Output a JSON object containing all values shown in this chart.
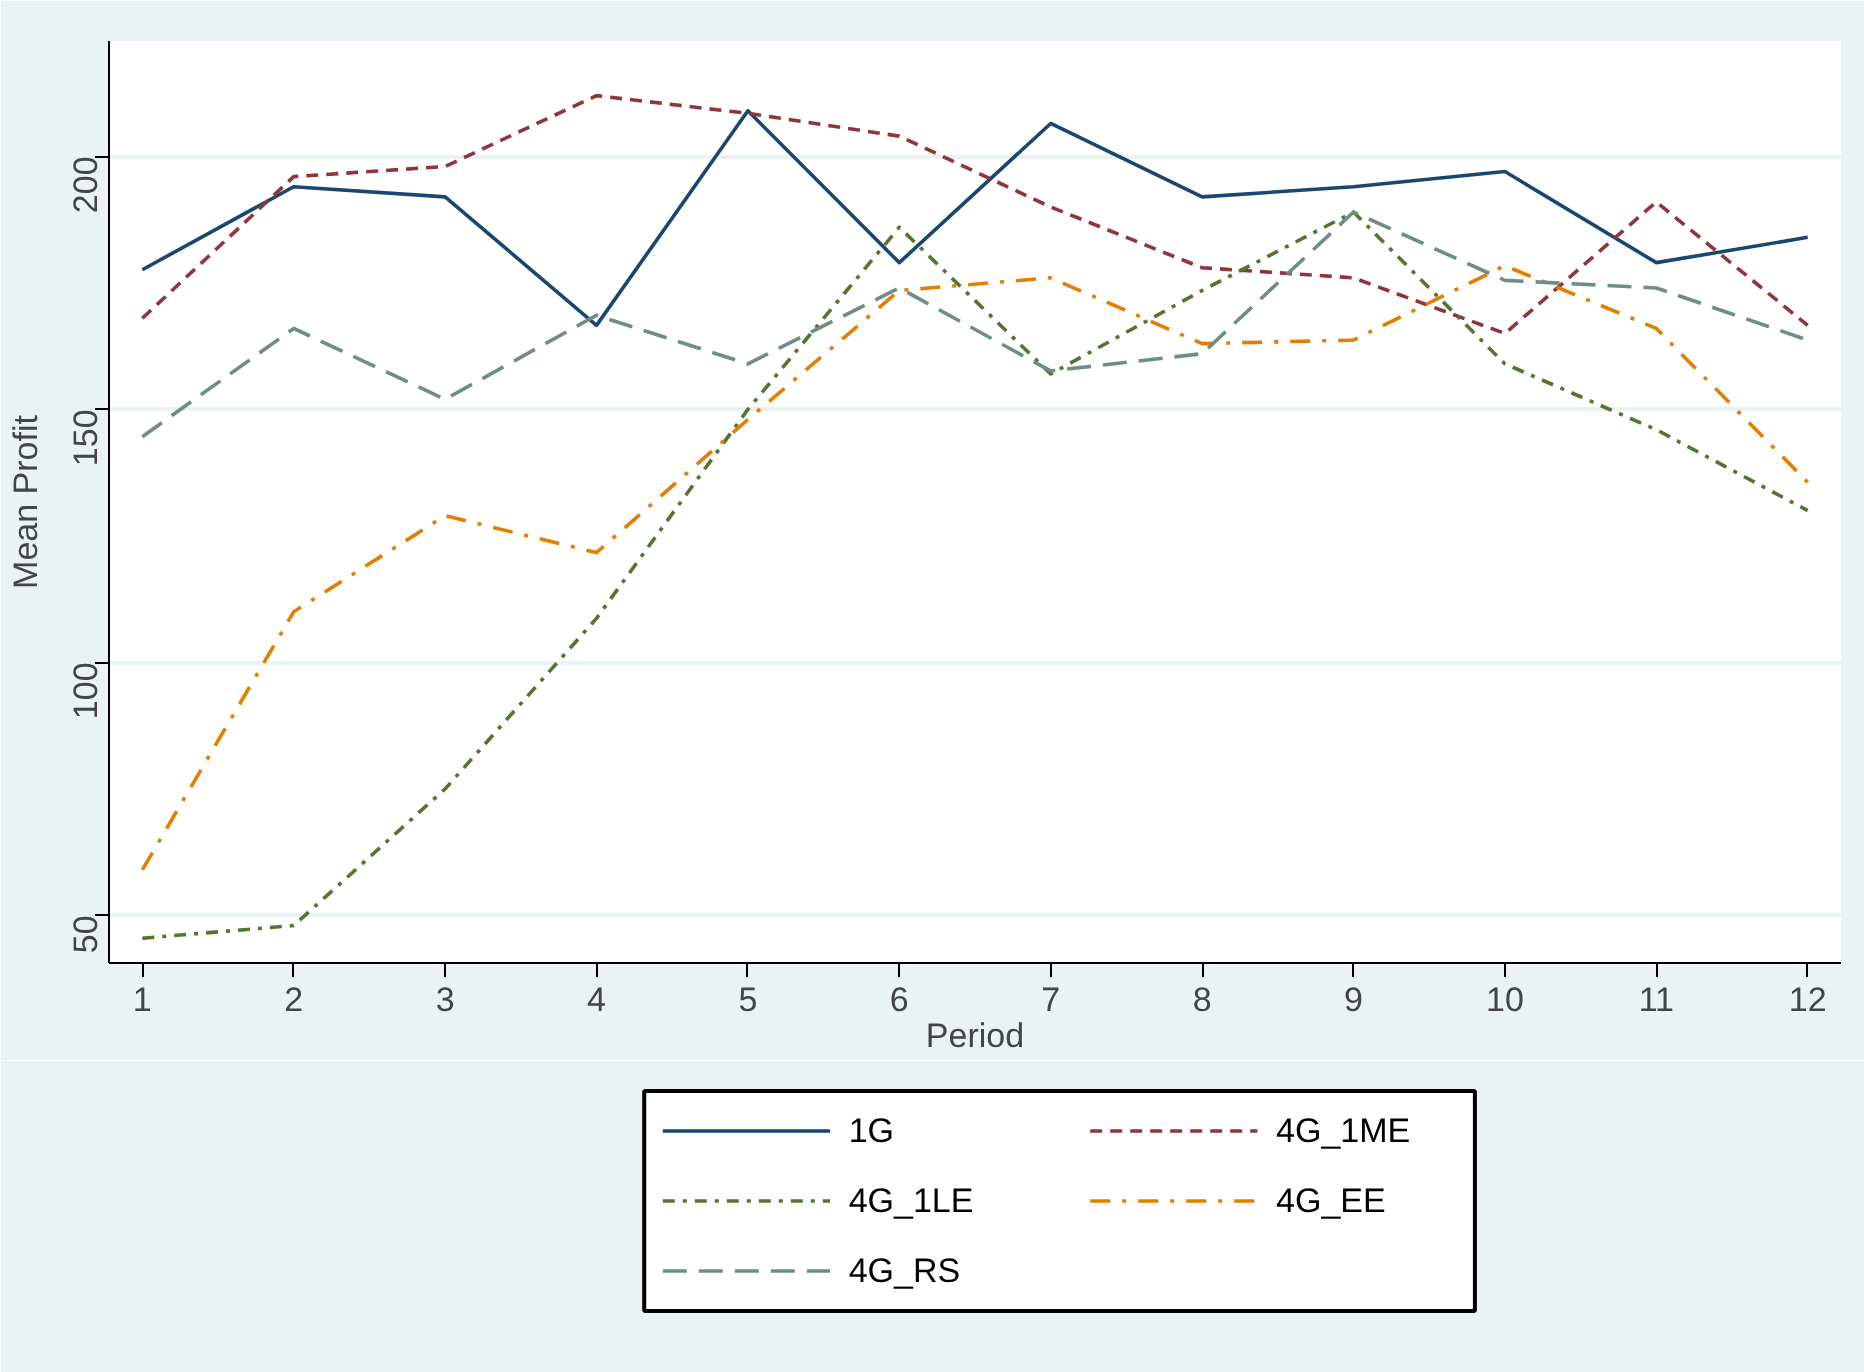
{
  "chart_data": {
    "type": "line",
    "xlabel": "Period",
    "ylabel": "Mean Profit",
    "x": [
      1,
      2,
      3,
      4,
      5,
      6,
      7,
      8,
      9,
      10,
      11,
      12
    ],
    "xlim": [
      0.78,
      12.22
    ],
    "ylim": [
      40.6,
      222.8
    ],
    "xticks": [
      1,
      2,
      3,
      4,
      5,
      6,
      7,
      8,
      9,
      10,
      11,
      12
    ],
    "yticks": [
      50,
      100,
      150,
      200
    ],
    "grid": "y",
    "legend": "bottom",
    "marker": "none",
    "series": [
      {
        "name": "1G",
        "color": "#1a476f",
        "line_style": "solid",
        "values": [
          177.6,
          194,
          192,
          166.6,
          209,
          179,
          206.5,
          192,
          194,
          197,
          179,
          184
        ]
      },
      {
        "name": "4G_1ME",
        "color": "#90353b",
        "line_style": "dashed",
        "values": [
          168,
          196,
          198,
          212,
          208.5,
          204,
          190,
          178,
          176,
          165,
          191,
          166.6
        ]
      },
      {
        "name": "4G_1LE",
        "color": "#55752f",
        "line_style": "dashdot",
        "values": [
          45.5,
          48,
          75,
          108.7,
          150,
          186,
          157,
          173.5,
          189,
          159,
          146,
          130
        ]
      },
      {
        "name": "4G_EE",
        "color": "#e37e00",
        "line_style": "longdashdot",
        "values": [
          59,
          110,
          129,
          121.7,
          148,
          173.5,
          176,
          163,
          163.7,
          178.4,
          166,
          135.6
        ]
      },
      {
        "name": "4G_RS",
        "color": "#6e8e84",
        "line_style": "longdash",
        "values": [
          144.6,
          166,
          152,
          168.6,
          159,
          174,
          157.6,
          161,
          189,
          175.5,
          174,
          163.7
        ]
      }
    ]
  }
}
